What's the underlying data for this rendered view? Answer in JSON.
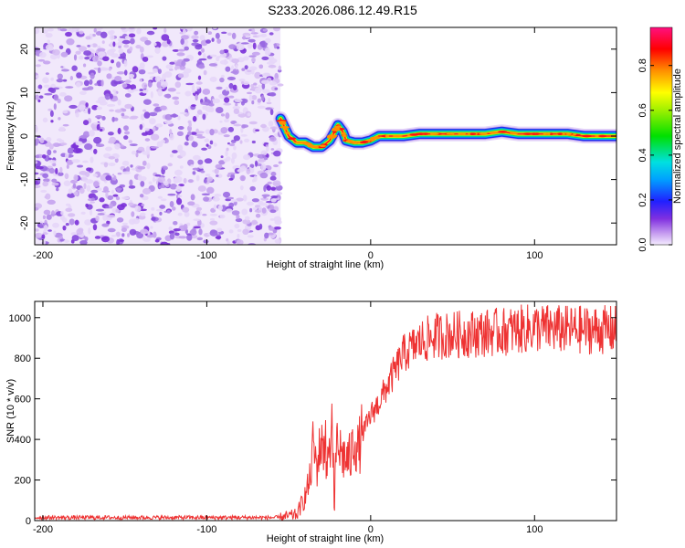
{
  "title": "S233.2026.086.12.49.R15",
  "chart_data": [
    {
      "type": "heatmap",
      "title": "S233.2026.086.12.49.R15",
      "xlabel": "Height of straight line (km)",
      "ylabel": "Frequency (Hz)",
      "xlim": [
        -205,
        150
      ],
      "ylim": [
        -25,
        25
      ],
      "xticks": [
        -200,
        -100,
        0,
        100
      ],
      "yticks": [
        20,
        10,
        0,
        -10,
        -20
      ],
      "noise_region_x": [
        -205,
        -55
      ],
      "signal_trace": {
        "x": [
          -55,
          -50,
          -45,
          -40,
          -35,
          -30,
          -25,
          -22,
          -20,
          -17,
          -15,
          -10,
          -5,
          0,
          5,
          10,
          20,
          30,
          40,
          50,
          60,
          70,
          80,
          90,
          100,
          110,
          120,
          130,
          140,
          150
        ],
        "freq": [
          4,
          0,
          -1.5,
          -1.5,
          -2.5,
          -2.5,
          -1,
          1,
          2.5,
          1,
          -1,
          -1.5,
          -1.5,
          -1,
          0,
          0,
          0,
          0.5,
          0.5,
          0.5,
          0.5,
          0.5,
          1,
          0.5,
          0.5,
          0.5,
          0.5,
          0,
          0,
          0
        ]
      },
      "colorbar": {
        "label": "Normalized spectral amplitude",
        "ticks": [
          0.0,
          0.2,
          0.4,
          0.6,
          0.8
        ],
        "range": [
          0,
          0.97
        ]
      }
    },
    {
      "type": "line",
      "xlabel": "Height of straight line (km)",
      "ylabel": "SNR (10 * v/v)",
      "xlim": [
        -205,
        150
      ],
      "ylim": [
        0,
        1080
      ],
      "xticks": [
        -200,
        -100,
        0,
        100
      ],
      "yticks": [
        0,
        200,
        400,
        600,
        800,
        1000
      ],
      "series": [
        {
          "name": "SNR",
          "color": "#ee3333",
          "x": [
            -205,
            -100,
            -55,
            -45,
            -40,
            -37,
            -35,
            -33,
            -30,
            -28,
            -27,
            -25,
            -24,
            -22,
            -20,
            -18,
            -15,
            -12,
            -10,
            -8,
            -5,
            -3,
            0,
            5,
            10,
            15,
            20,
            30,
            40,
            60,
            80,
            100,
            120,
            150
          ],
          "y": [
            15,
            15,
            15,
            30,
            120,
            200,
            380,
            260,
            400,
            350,
            250,
            330,
            520,
            250,
            380,
            330,
            300,
            310,
            420,
            340,
            430,
            460,
            520,
            580,
            660,
            740,
            820,
            880,
            910,
            920,
            930,
            950,
            940,
            940
          ]
        }
      ]
    }
  ]
}
